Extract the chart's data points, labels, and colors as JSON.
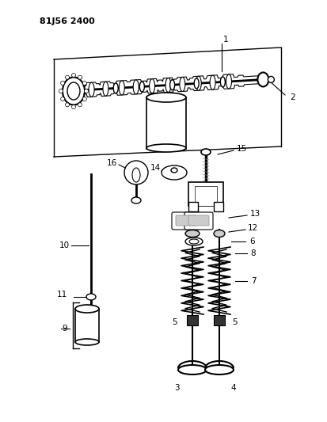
{
  "title": "81J56 2400",
  "bg_color": "#ffffff",
  "line_color": "#000000",
  "gray_color": "#888888",
  "light_gray": "#cccccc",
  "dark_gray": "#333333",
  "fig_width": 4.13,
  "fig_height": 5.33,
  "dpi": 100
}
